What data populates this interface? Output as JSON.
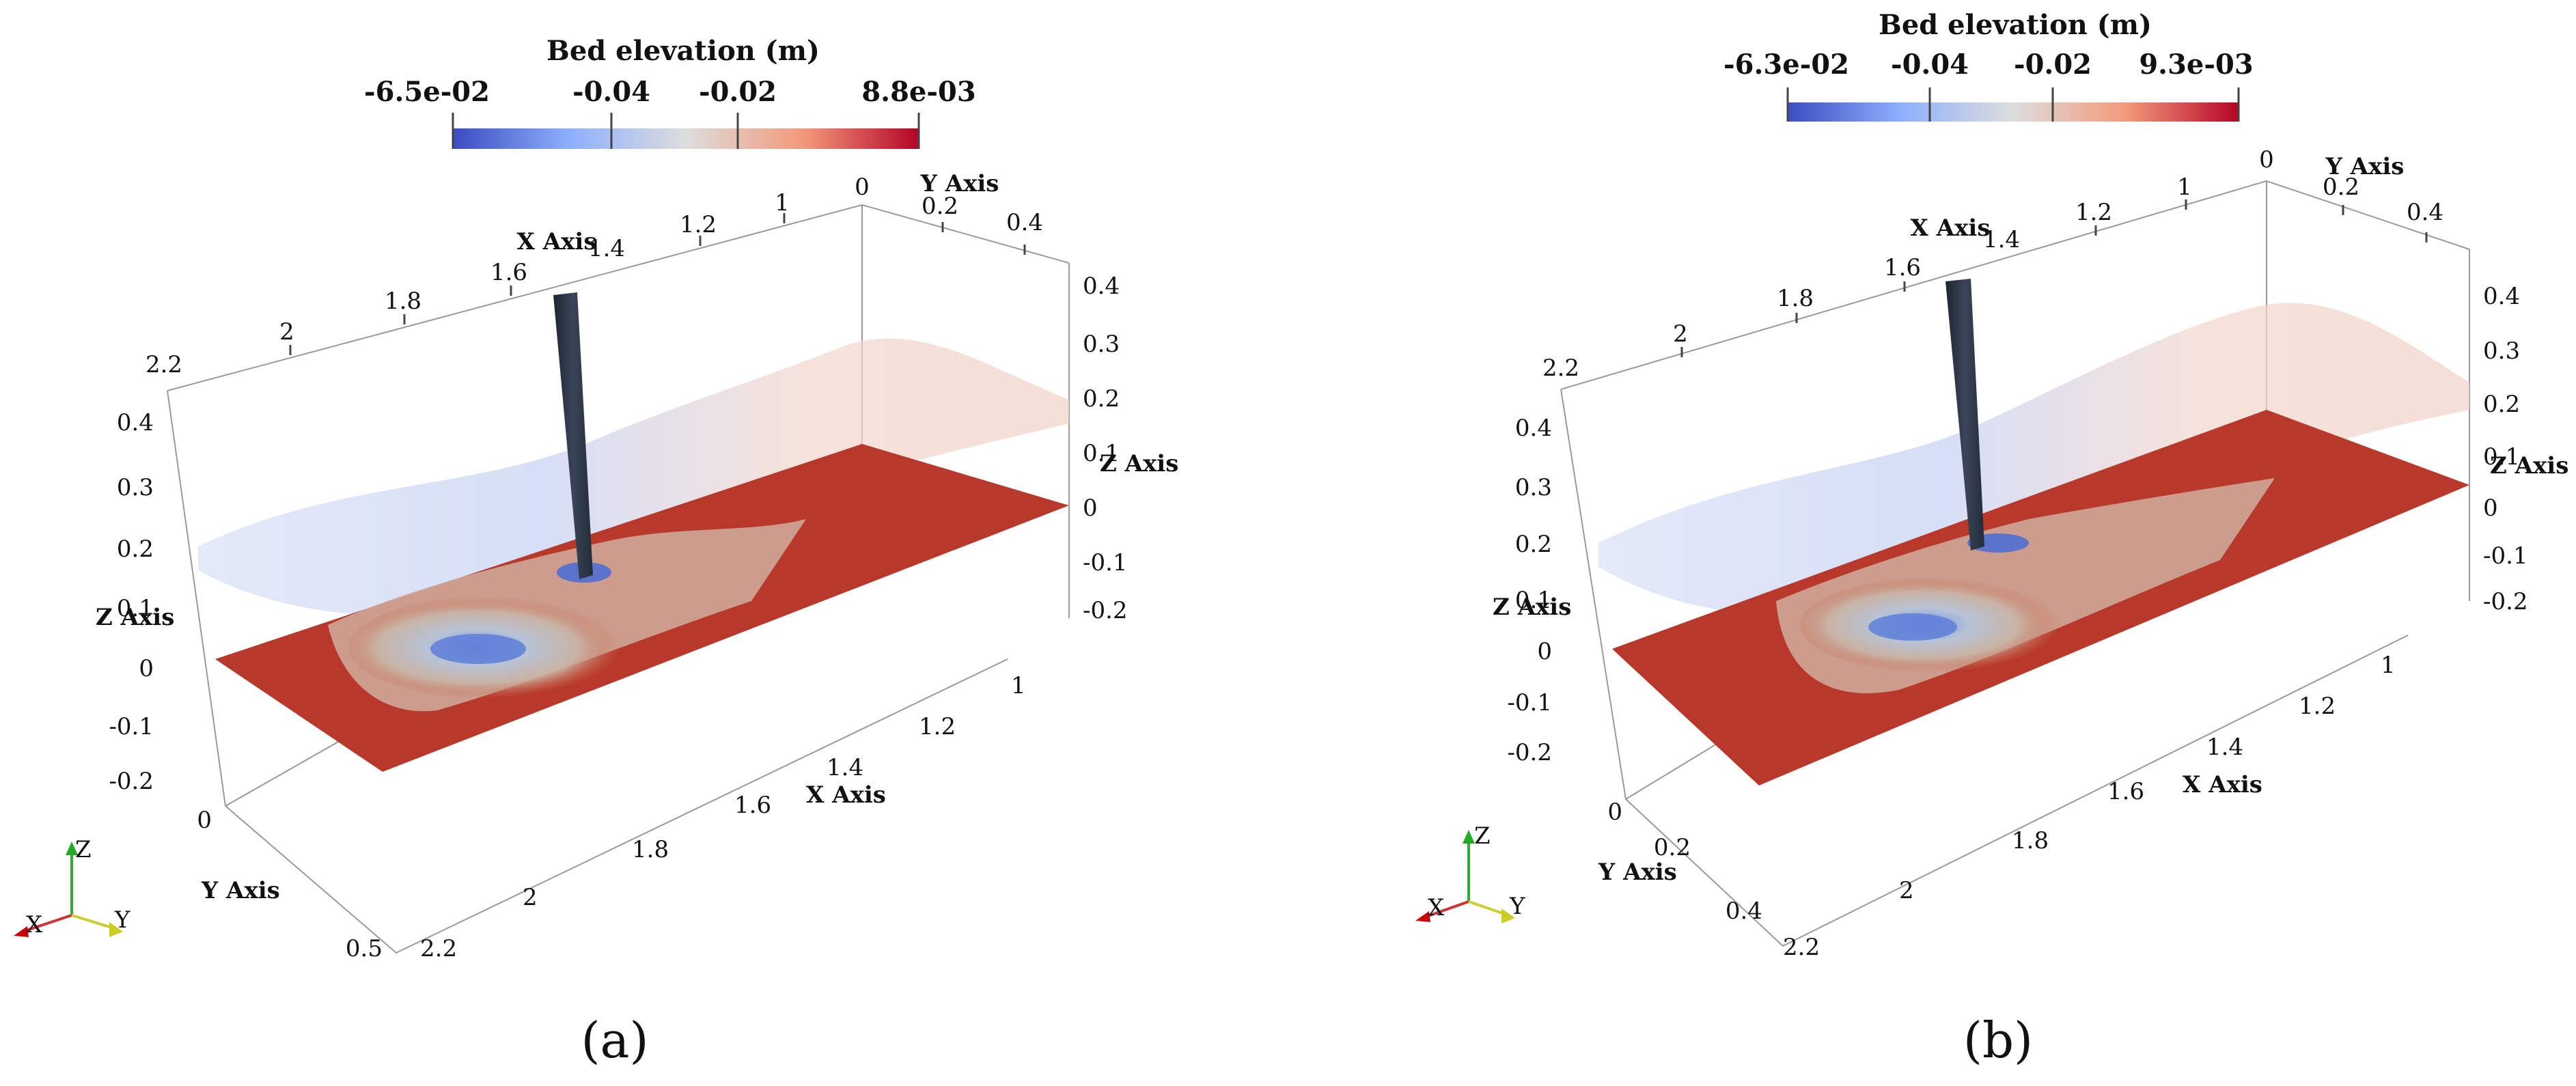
{
  "panels": [
    {
      "id": "a",
      "caption": "(a)",
      "colorbar": {
        "title": "Bed elevation (m)",
        "min_label": "-6.5e-02",
        "mid1_label": "-0.04",
        "mid2_label": "-0.02",
        "max_label": "8.8e-03"
      },
      "axes": {
        "x_axis_label": "X Axis",
        "y_axis_label": "Y Axis",
        "z_axis_label": "Z Axis",
        "top_x_ticks": [
          "2.2",
          "2",
          "1.8",
          "1.6",
          "1.4",
          "1.2",
          "1",
          "0"
        ],
        "top_y_ticks": [
          "0.2",
          "0.4"
        ],
        "right_z_ticks": [
          "0.4",
          "0.3",
          "0.2",
          "0.1",
          "0",
          "-0.1",
          "-0.2"
        ],
        "left_z_ticks": [
          "0.4",
          "0.3",
          "0.2",
          "0.1",
          "0",
          "-0.1",
          "-0.2"
        ],
        "bottom_x_ticks": [
          "1",
          "1.2",
          "1.4",
          "1.6",
          "1.8",
          "2",
          "2.2"
        ],
        "left_y_ticks": [
          "0",
          "0.5"
        ]
      },
      "orientation": {
        "x": "X",
        "y": "Y",
        "z": "Z"
      }
    },
    {
      "id": "b",
      "caption": "(b)",
      "colorbar": {
        "title": "Bed elevation (m)",
        "min_label": "-6.3e-02",
        "mid1_label": "-0.04",
        "mid2_label": "-0.02",
        "max_label": "9.3e-03"
      },
      "axes": {
        "x_axis_label": "X Axis",
        "y_axis_label": "Y Axis",
        "z_axis_label": "Z Axis",
        "top_x_ticks": [
          "2.2",
          "2",
          "1.8",
          "1.6",
          "1.4",
          "1.2",
          "1",
          "0"
        ],
        "top_y_ticks": [
          "0.2",
          "0.4"
        ],
        "right_z_ticks": [
          "0.4",
          "0.3",
          "0.2",
          "0.1",
          "0",
          "-0.1",
          "-0.2"
        ],
        "left_z_ticks": [
          "0.4",
          "0.3",
          "0.2",
          "0.1",
          "0",
          "-0.1",
          "-0.2"
        ],
        "bottom_x_ticks": [
          "1",
          "1.2",
          "1.4",
          "1.6",
          "1.8",
          "2",
          "2.2"
        ],
        "left_y_ticks": [
          "0",
          "0.2",
          "0.4"
        ]
      },
      "orientation": {
        "x": "X",
        "y": "Y",
        "z": "Z"
      }
    }
  ],
  "colors": {
    "cold": "#3a4cc0",
    "neutral": "#dddddd",
    "warm": "#b40426",
    "bed": "#b8392b",
    "pier": "#2b3444"
  }
}
